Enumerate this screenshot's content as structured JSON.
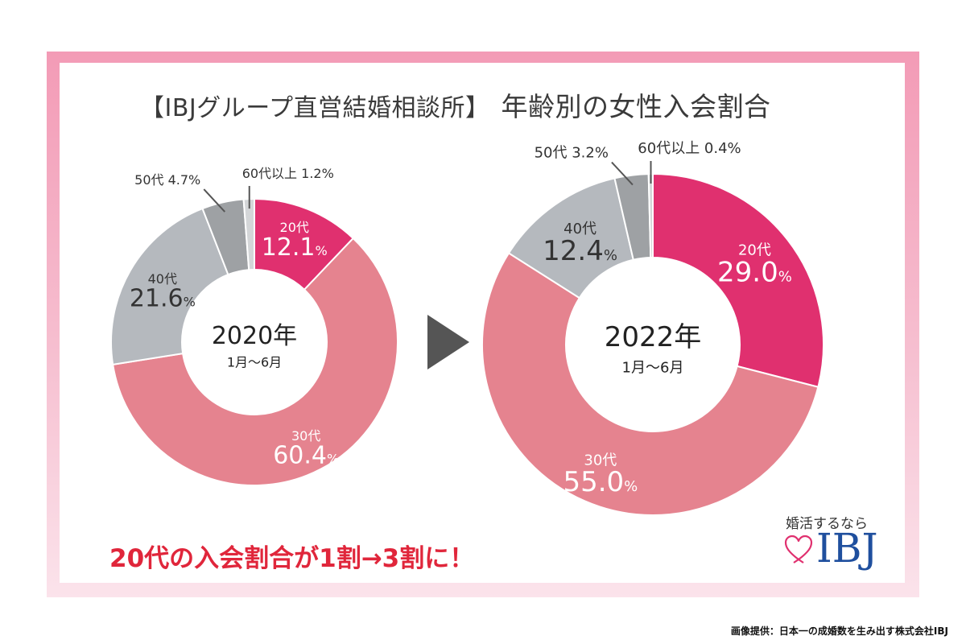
{
  "title": {
    "prefix": "【IBJグループ直営結婚相談所】",
    "main": "年齢別の女性入会割合"
  },
  "headline": "20代の入会割合が1割→3割に！",
  "logo": {
    "tagline": "婚活するなら",
    "text": "IBJ"
  },
  "credit": "画像提供：日本一の成婚数を生み出す株式会社IBJ",
  "colors": {
    "20s": "#e0306f",
    "30s": "#e5838f",
    "40s": "#b5b9be",
    "50s": "#9ea1a4",
    "60s": "#d4d6d8",
    "arrow": "#555555"
  },
  "chart_data": [
    {
      "type": "pie",
      "center_label": "2020年",
      "center_sublabel": "1月～6月",
      "slices": [
        {
          "label": "20代",
          "value": 12.1,
          "value_text": "12.1"
        },
        {
          "label": "30代",
          "value": 60.4,
          "value_text": "60.4"
        },
        {
          "label": "40代",
          "value": 21.6,
          "value_text": "21.6"
        },
        {
          "label": "50代",
          "value": 4.7,
          "value_text": "4.7"
        },
        {
          "label": "60代以上",
          "value": 1.2,
          "value_text": "1.2"
        }
      ]
    },
    {
      "type": "pie",
      "center_label": "2022年",
      "center_sublabel": "1月～6月",
      "slices": [
        {
          "label": "20代",
          "value": 29.0,
          "value_text": "29.0"
        },
        {
          "label": "30代",
          "value": 55.0,
          "value_text": "55.0"
        },
        {
          "label": "40代",
          "value": 12.4,
          "value_text": "12.4"
        },
        {
          "label": "50代",
          "value": 3.2,
          "value_text": "3.2"
        },
        {
          "label": "60代以上",
          "value": 0.4,
          "value_text": "0.4"
        }
      ]
    }
  ]
}
